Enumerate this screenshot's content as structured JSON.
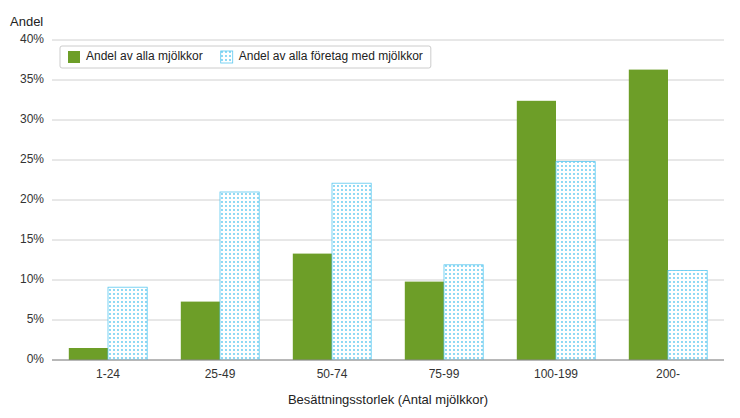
{
  "chart_data": {
    "type": "bar",
    "categories": [
      "1-24",
      "25-49",
      "50-74",
      "75-99",
      "100-199",
      "200-"
    ],
    "series": [
      {
        "name": "Andel av alla mjölkkor",
        "color": "#6d9e28",
        "values": [
          1.5,
          7.3,
          13.3,
          9.8,
          32.4,
          36.3
        ]
      },
      {
        "name": "Andel av alla företag med mjölkkor",
        "color": "#5bc8f0",
        "values": [
          9.1,
          21.0,
          22.1,
          11.9,
          24.8,
          11.2
        ]
      }
    ],
    "y_label": "Andel",
    "x_label": "Besättningsstorlek (Antal mjölkkor)",
    "ylim": [
      0,
      40
    ],
    "yticks": [
      {
        "value": 0,
        "label": "0%"
      },
      {
        "value": 5,
        "label": "5%"
      },
      {
        "value": 10,
        "label": "10%"
      },
      {
        "value": 15,
        "label": "15%"
      },
      {
        "value": 20,
        "label": "20%"
      },
      {
        "value": 25,
        "label": "25%"
      },
      {
        "value": 30,
        "label": "30%"
      },
      {
        "value": 35,
        "label": "35%"
      },
      {
        "value": 40,
        "label": "40%"
      }
    ],
    "grid": true,
    "legend": "upper left"
  }
}
